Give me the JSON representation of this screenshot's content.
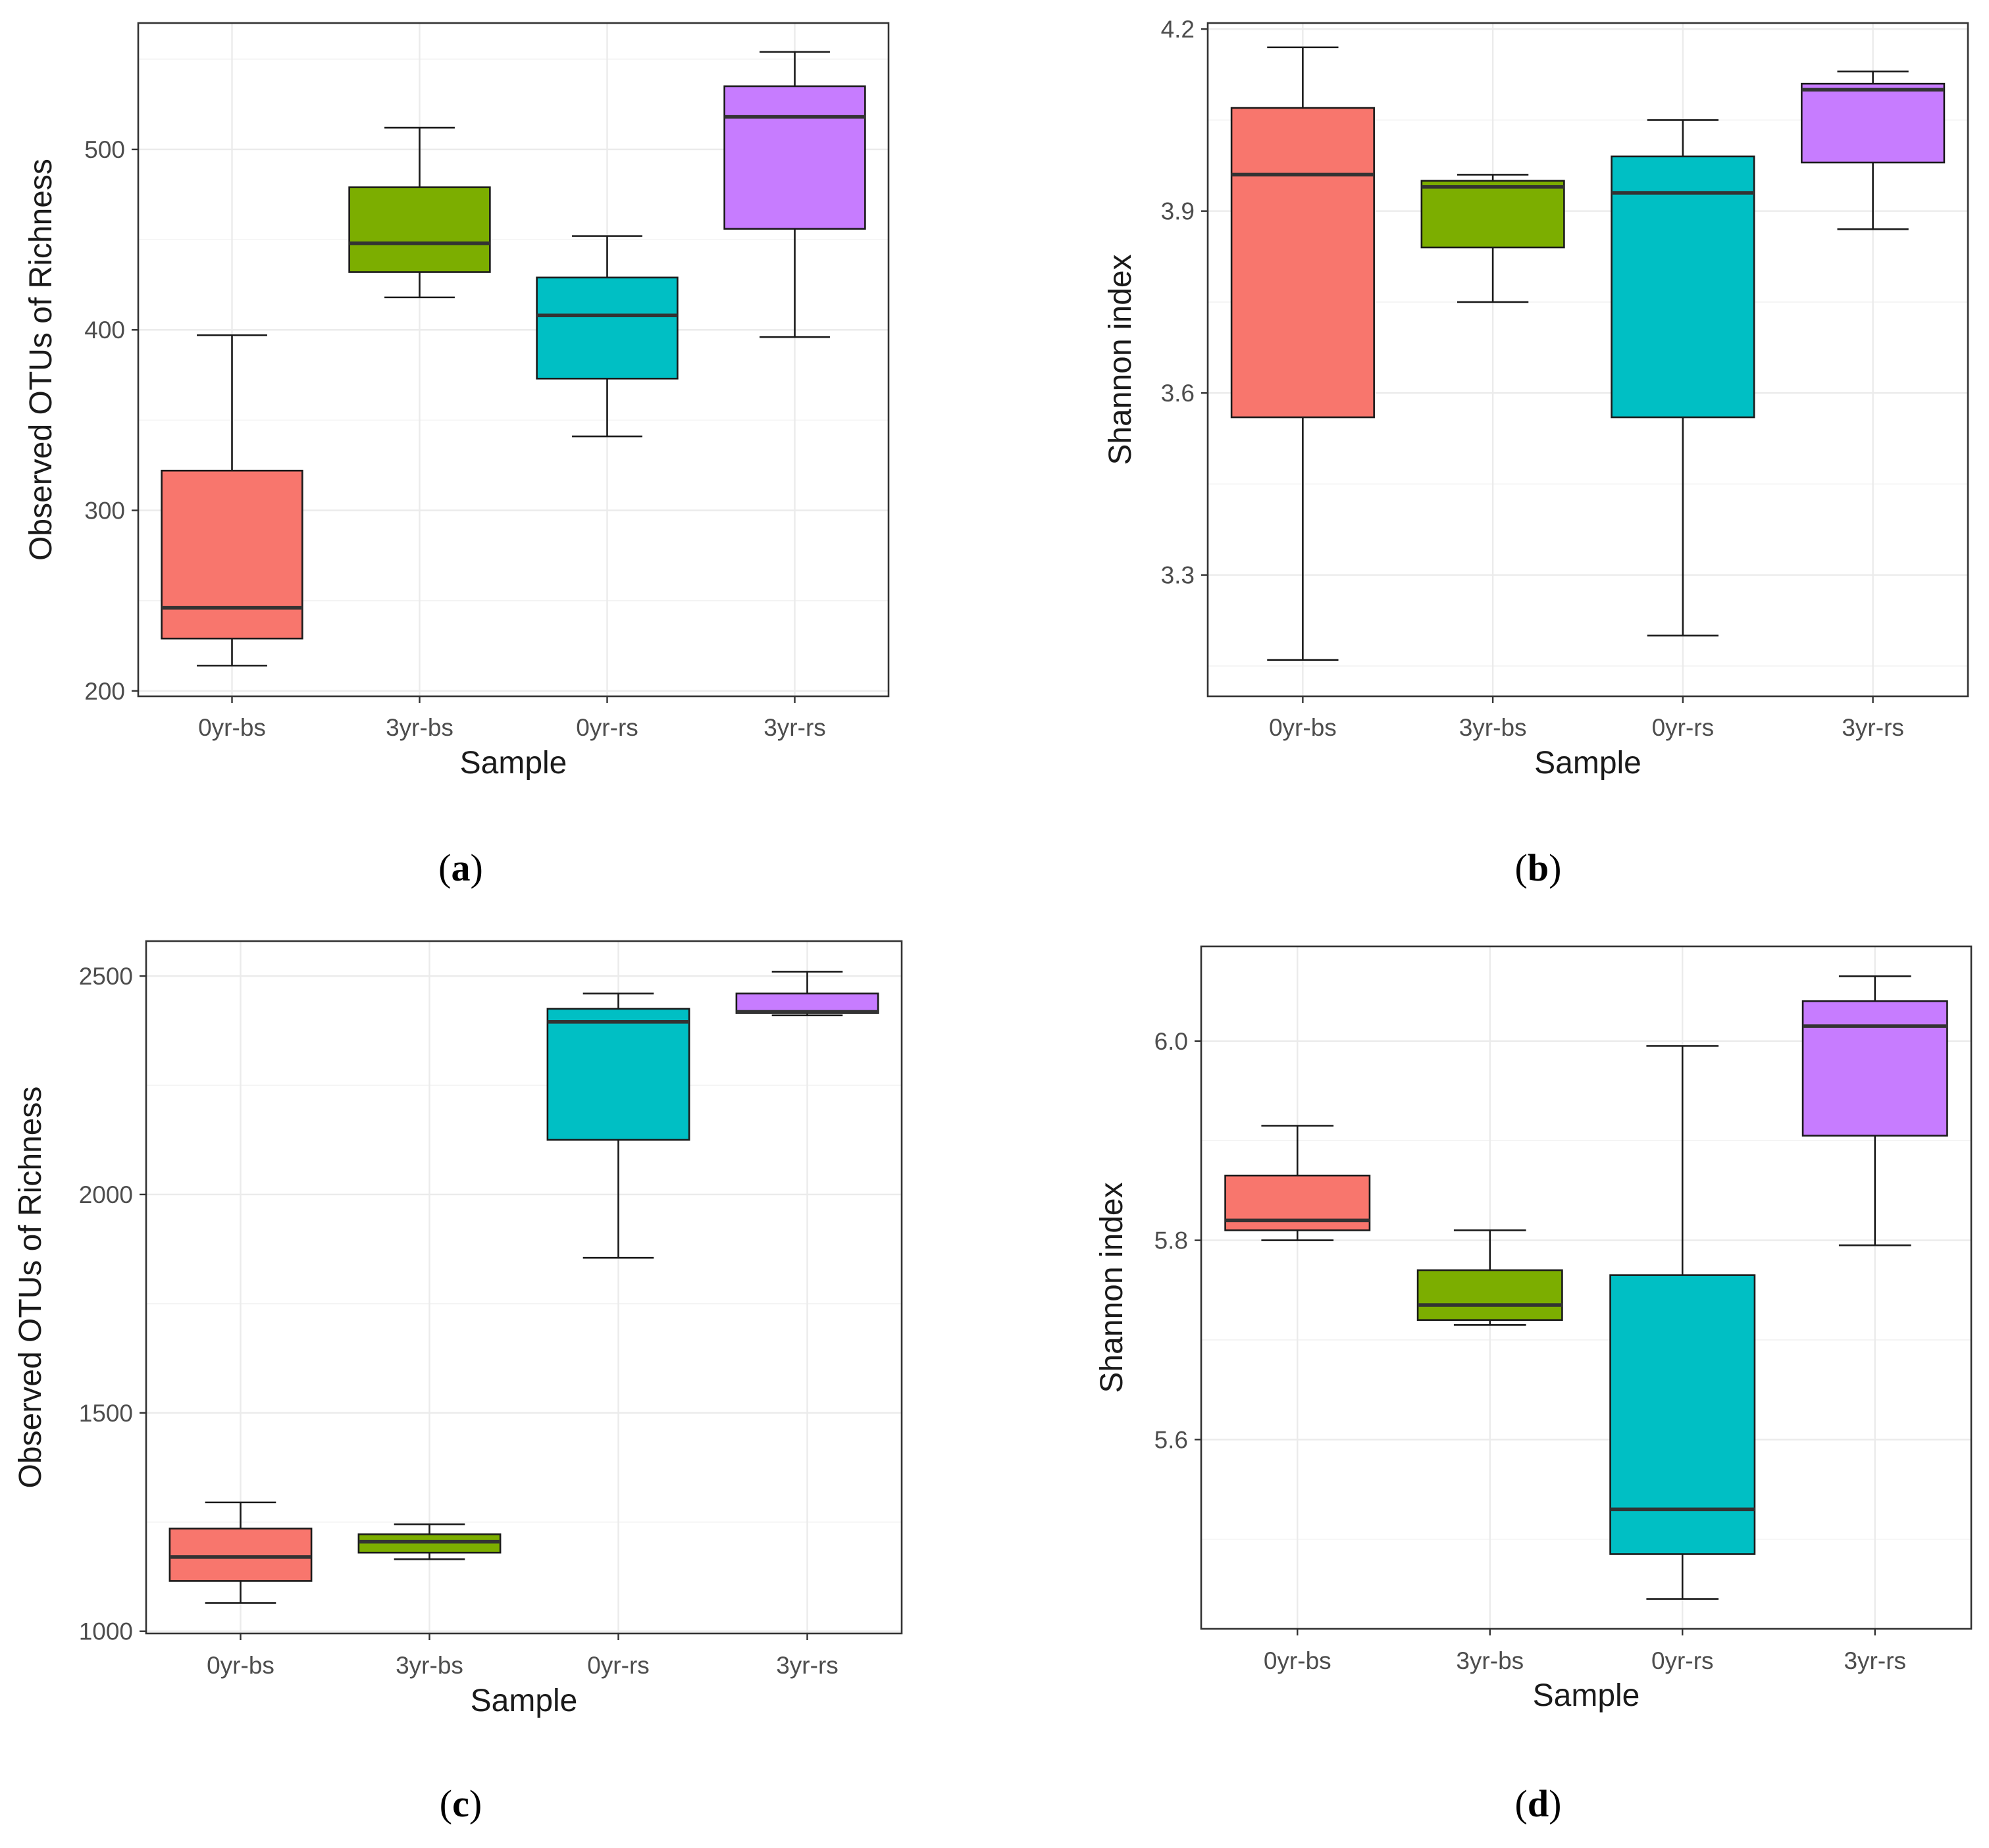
{
  "group_colors": {
    "0yr-bs": "#F8766D",
    "3yr-bs": "#7CAE00",
    "0yr-rs": "#00BFC4",
    "3yr-rs": "#C77CFF"
  },
  "captions": {
    "a": {
      "open": "(",
      "letter": "a",
      "close": ")"
    },
    "b": {
      "open": "(",
      "letter": "b",
      "close": ")"
    },
    "c": {
      "open": "(",
      "letter": "c",
      "close": ")"
    },
    "d": {
      "open": "(",
      "letter": "d",
      "close": ")"
    }
  },
  "chart_data": [
    {
      "id": "a",
      "type": "boxplot",
      "xlabel": "Sample",
      "ylabel": "Observed OTUs of Richness",
      "categories": [
        "0yr-bs",
        "3yr-bs",
        "0yr-rs",
        "3yr-rs"
      ],
      "ylim": [
        197,
        570
      ],
      "yticks": [
        200,
        300,
        400,
        500
      ],
      "ytick_labels": [
        "200",
        "300",
        "400",
        "500"
      ],
      "yminor": [
        250,
        350,
        450,
        550
      ],
      "boxes": [
        {
          "group": "0yr-bs",
          "min": 214,
          "q1": 229,
          "median": 246,
          "q3": 322,
          "max": 397
        },
        {
          "group": "3yr-bs",
          "min": 418,
          "q1": 432,
          "median": 448,
          "q3": 479,
          "max": 512
        },
        {
          "group": "0yr-rs",
          "min": 341,
          "q1": 373,
          "median": 408,
          "q3": 429,
          "max": 452
        },
        {
          "group": "3yr-rs",
          "min": 396,
          "q1": 456,
          "median": 518,
          "q3": 535,
          "max": 554
        }
      ]
    },
    {
      "id": "b",
      "type": "boxplot",
      "xlabel": "Sample",
      "ylabel": "Shannon index",
      "categories": [
        "0yr-bs",
        "3yr-bs",
        "0yr-rs",
        "3yr-rs"
      ],
      "ylim": [
        3.1,
        4.21
      ],
      "yticks": [
        3.3,
        3.6,
        3.9,
        4.2
      ],
      "ytick_labels": [
        "3.3",
        "3.6",
        "3.9",
        "4.2"
      ],
      "yminor": [
        3.15,
        3.45,
        3.75,
        4.05
      ],
      "boxes": [
        {
          "group": "0yr-bs",
          "min": 3.16,
          "q1": 3.56,
          "median": 3.96,
          "q3": 4.07,
          "max": 4.17
        },
        {
          "group": "3yr-bs",
          "min": 3.75,
          "q1": 3.84,
          "median": 3.94,
          "q3": 3.95,
          "max": 3.96
        },
        {
          "group": "0yr-rs",
          "min": 3.2,
          "q1": 3.56,
          "median": 3.93,
          "q3": 3.99,
          "max": 4.05
        },
        {
          "group": "3yr-rs",
          "min": 3.87,
          "q1": 3.98,
          "median": 4.1,
          "q3": 4.11,
          "max": 4.13
        }
      ]
    },
    {
      "id": "c",
      "type": "boxplot",
      "xlabel": "Sample",
      "ylabel": "Observed OTUs of Richness",
      "categories": [
        "0yr-bs",
        "3yr-bs",
        "0yr-rs",
        "3yr-rs"
      ],
      "ylim": [
        995,
        2580
      ],
      "yticks": [
        1000,
        1500,
        2000,
        2500
      ],
      "ytick_labels": [
        "1000",
        "1500",
        "2000",
        "2500"
      ],
      "yminor": [
        1250,
        1750,
        2250
      ],
      "boxes": [
        {
          "group": "0yr-bs",
          "min": 1065,
          "q1": 1115,
          "median": 1170,
          "q3": 1235,
          "max": 1295
        },
        {
          "group": "3yr-bs",
          "min": 1165,
          "q1": 1180,
          "median": 1205,
          "q3": 1222,
          "max": 1245
        },
        {
          "group": "0yr-rs",
          "min": 1855,
          "q1": 2125,
          "median": 2395,
          "q3": 2425,
          "max": 2460
        },
        {
          "group": "3yr-rs",
          "min": 2410,
          "q1": 2415,
          "median": 2418,
          "q3": 2460,
          "max": 2510
        }
      ]
    },
    {
      "id": "d",
      "type": "boxplot",
      "xlabel": "Sample",
      "ylabel": "Shannon index",
      "categories": [
        "0yr-bs",
        "3yr-bs",
        "0yr-rs",
        "3yr-rs"
      ],
      "ylim": [
        5.41,
        6.095
      ],
      "yticks": [
        5.6,
        5.8,
        6.0
      ],
      "ytick_labels": [
        "5.6",
        "5.8",
        "6.0"
      ],
      "yminor": [
        5.5,
        5.7,
        5.9
      ],
      "boxes": [
        {
          "group": "0yr-bs",
          "min": 5.8,
          "q1": 5.81,
          "median": 5.82,
          "q3": 5.865,
          "max": 5.915
        },
        {
          "group": "3yr-bs",
          "min": 5.715,
          "q1": 5.72,
          "median": 5.735,
          "q3": 5.77,
          "max": 5.81
        },
        {
          "group": "0yr-rs",
          "min": 5.44,
          "q1": 5.485,
          "median": 5.53,
          "q3": 5.765,
          "max": 5.995
        },
        {
          "group": "3yr-rs",
          "min": 5.795,
          "q1": 5.905,
          "median": 6.015,
          "q3": 6.04,
          "max": 6.065
        }
      ]
    }
  ]
}
